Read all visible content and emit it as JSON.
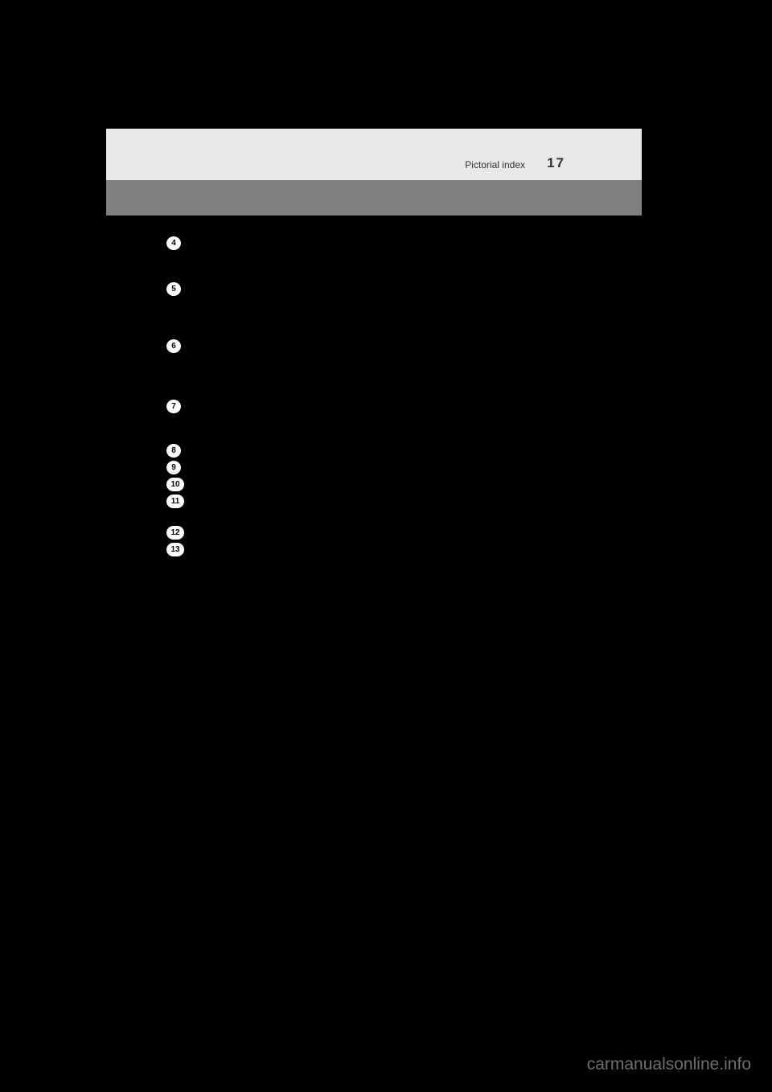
{
  "header": {
    "section_title": "Pictorial index",
    "page_number": "17"
  },
  "index_items": [
    {
      "num": "4",
      "wide": false
    },
    {
      "num": "5",
      "wide": false
    },
    {
      "num": "6",
      "wide": false
    },
    {
      "num": "7",
      "wide": false
    },
    {
      "num": "8",
      "wide": false
    },
    {
      "num": "9",
      "wide": false
    },
    {
      "num": "10",
      "wide": true
    },
    {
      "num": "11",
      "wide": true
    },
    {
      "num": "12",
      "wide": true
    },
    {
      "num": "13",
      "wide": true
    }
  ],
  "watermark": "carmanualsonline.info",
  "colors": {
    "page_bg": "#000000",
    "header_light": "#e8e8e8",
    "header_gray": "#808080",
    "circle_bg": "#ffffff",
    "circle_text": "#000000",
    "watermark_color": "#6f6f6f"
  }
}
